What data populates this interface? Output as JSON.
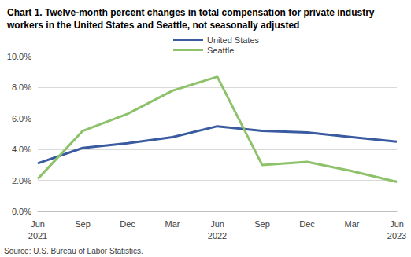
{
  "chart_data": {
    "type": "line",
    "title": "Chart 1. Twelve-month percent changes in total compensation for private industry workers in the United States and Seattle, not seasonally adjusted",
    "annotations": [
      "Source: U.S. Bureau of Labor Statistics."
    ],
    "categories": [
      "Jun\n2021",
      "Sep",
      "Dec",
      "Mar",
      "Jun\n2022",
      "Sep",
      "Dec",
      "Mar",
      "Jun\n2023"
    ],
    "series": [
      {
        "name": "United States",
        "color": "#3a5ba0",
        "values": [
          3.1,
          4.1,
          4.4,
          4.8,
          5.5,
          5.2,
          5.1,
          4.8,
          4.5
        ]
      },
      {
        "name": "Seattle",
        "color": "#8dc26a",
        "values": [
          2.1,
          5.2,
          6.3,
          7.8,
          8.7,
          3.0,
          3.2,
          2.6,
          1.9
        ]
      }
    ],
    "ylim": [
      0,
      10
    ],
    "yticks": [
      {
        "value": 0,
        "label": "0.0%"
      },
      {
        "value": 2,
        "label": "2.0%"
      },
      {
        "value": 4,
        "label": "4.0%"
      },
      {
        "value": 6,
        "label": "6.0%"
      },
      {
        "value": 8,
        "label": "8.0%"
      },
      {
        "value": 10,
        "label": "10.0%"
      }
    ],
    "grid": true,
    "legend": "top"
  }
}
